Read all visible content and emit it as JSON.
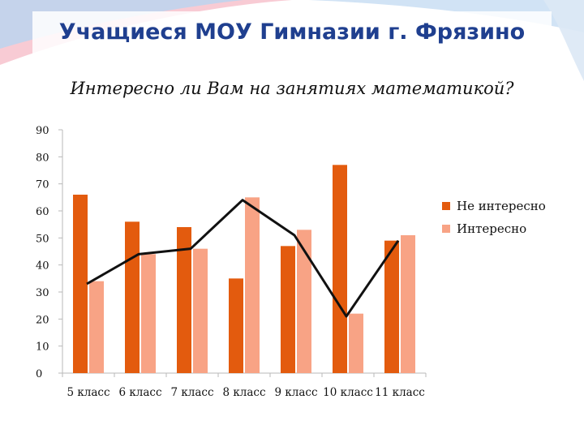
{
  "slide": {
    "title": "Учащиеся МОУ Гимназии г. Фрязино",
    "subtitle": "Интересно ли Вам на занятиях математикой?"
  },
  "colors": {
    "not_interested": "#e35b0e",
    "interested": "#f8a385",
    "line": "#111111",
    "title": "#1f3f8f"
  },
  "chart_data": {
    "type": "bar",
    "categories": [
      "5 класс",
      "6 класс",
      "7 класс",
      "8 класс",
      "9 класс",
      "10 класс",
      "11 класс"
    ],
    "series": [
      {
        "name": "Не интересно",
        "values": [
          66,
          56,
          54,
          35,
          47,
          77,
          49
        ]
      },
      {
        "name": "Интересно",
        "values": [
          34,
          44,
          46,
          65,
          53,
          22,
          51
        ]
      }
    ],
    "line_values": [
      33,
      44,
      46,
      64,
      51,
      21,
      49
    ],
    "ylim": [
      0,
      90
    ],
    "yticks": [
      0,
      10,
      20,
      30,
      40,
      50,
      60,
      70,
      80,
      90
    ],
    "grid": false,
    "legend_position": "right"
  }
}
